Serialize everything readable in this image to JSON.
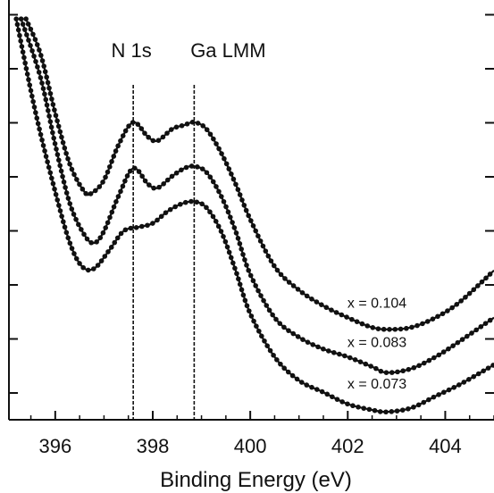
{
  "chart_data": {
    "type": "line",
    "title": "",
    "xlabel": "Binding Energy (eV)",
    "ylabel": "",
    "xlim": [
      395.05,
      405.0
    ],
    "ylim": [
      0,
      1
    ],
    "x_ticks": [
      396,
      398,
      400,
      402,
      404
    ],
    "x_tick_labels": [
      "396",
      "398",
      "400",
      "402",
      "404"
    ],
    "y_tick_count": 8,
    "y_tick_labels_shown": false,
    "reference_lines": [
      {
        "name": "N 1s",
        "x": 397.6
      },
      {
        "name": "Ga LMM",
        "x": 398.85
      }
    ],
    "series": [
      {
        "name": "x = 0.104",
        "x": [
          395.4,
          395.7,
          396.0,
          396.3,
          396.6,
          396.75,
          397.0,
          397.3,
          397.6,
          397.9,
          398.1,
          398.4,
          398.65,
          398.85,
          399.1,
          399.4,
          399.7,
          400.0,
          400.5,
          401.0,
          401.5,
          402.0,
          402.5,
          402.85,
          403.3,
          403.8,
          404.3,
          405.0
        ],
        "values": [
          1.02,
          0.93,
          0.78,
          0.65,
          0.58,
          0.577,
          0.61,
          0.7,
          0.757,
          0.72,
          0.71,
          0.74,
          0.75,
          0.757,
          0.74,
          0.68,
          0.6,
          0.51,
          0.39,
          0.33,
          0.29,
          0.26,
          0.235,
          0.23,
          0.235,
          0.26,
          0.3,
          0.38
        ]
      },
      {
        "name": "x = 0.083",
        "x": [
          395.3,
          395.7,
          396.0,
          396.3,
          396.6,
          396.8,
          397.0,
          397.3,
          397.6,
          397.9,
          398.1,
          398.4,
          398.65,
          398.85,
          399.1,
          399.4,
          399.7,
          400.0,
          400.5,
          401.0,
          401.5,
          402.0,
          402.5,
          402.8,
          403.3,
          403.8,
          404.3,
          405.0
        ],
        "values": [
          1.02,
          0.87,
          0.7,
          0.55,
          0.47,
          0.45,
          0.48,
          0.57,
          0.64,
          0.6,
          0.59,
          0.62,
          0.64,
          0.645,
          0.63,
          0.57,
          0.48,
          0.37,
          0.26,
          0.21,
          0.18,
          0.16,
          0.135,
          0.12,
          0.13,
          0.16,
          0.2,
          0.26
        ]
      },
      {
        "name": "x = 0.073",
        "x": [
          395.2,
          395.6,
          396.0,
          396.3,
          396.55,
          396.8,
          397.1,
          397.4,
          397.7,
          398.0,
          398.3,
          398.6,
          398.85,
          399.1,
          399.4,
          399.7,
          400.0,
          400.5,
          401.0,
          401.5,
          402.0,
          402.5,
          402.8,
          403.3,
          403.8,
          404.3,
          405.0
        ],
        "values": [
          1.02,
          0.78,
          0.58,
          0.45,
          0.39,
          0.385,
          0.43,
          0.48,
          0.49,
          0.5,
          0.53,
          0.55,
          0.555,
          0.54,
          0.48,
          0.38,
          0.27,
          0.16,
          0.1,
          0.07,
          0.04,
          0.025,
          0.02,
          0.03,
          0.06,
          0.09,
          0.14
        ]
      }
    ],
    "series_label_positions_x": [
      402.6,
      402.6,
      402.6
    ],
    "series_label_positions_y": [
      0.235,
      0.135,
      0.03
    ],
    "grid": false,
    "legend": "none",
    "colors": {
      "line": "#111111",
      "marker": "#111111"
    }
  }
}
